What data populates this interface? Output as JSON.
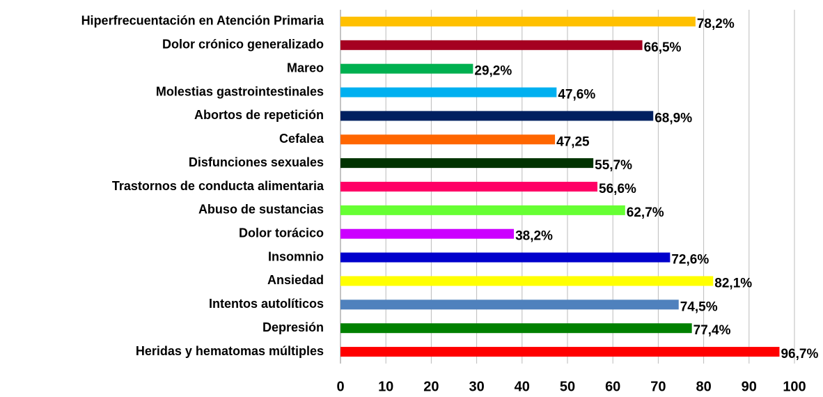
{
  "chart_data": {
    "type": "hbar",
    "categories": [
      "Hiperfrecuentación en Atención Primaria",
      "Dolor crónico generalizado",
      "Mareo",
      "Molestias gastrointestinales",
      "Abortos de repetición",
      "Cefalea",
      "Disfunciones sexuales",
      "Trastornos de conducta alimentaria",
      "Abuso de sustancias",
      "Dolor torácico",
      "Insomnio",
      "Ansiedad",
      "Intentos autolíticos",
      "Depresión",
      "Heridas y hematomas múltiples"
    ],
    "values": [
      78.2,
      66.5,
      29.2,
      47.6,
      68.9,
      47.25,
      55.7,
      56.6,
      62.7,
      38.2,
      72.6,
      82.1,
      74.5,
      77.4,
      96.7
    ],
    "value_labels": [
      "78,2%",
      "66,5%",
      "29,2%",
      "47,6%",
      "68,9%",
      "47,25",
      "55,7%",
      "56,6%",
      "62,7%",
      "38,2%",
      "72,6%",
      "82,1%",
      "74,5%",
      "77,4%",
      "96,7%"
    ],
    "colors": [
      "#FFC000",
      "#A50021",
      "#00B050",
      "#00B0F0",
      "#002060",
      "#FF6600",
      "#003300",
      "#FF0066",
      "#66FF33",
      "#CC00FF",
      "#0000CC",
      "#FFFF00",
      "#4F81BD",
      "#008000",
      "#FF0000"
    ],
    "xlim": [
      0,
      100
    ],
    "xticks": [
      0,
      10,
      20,
      30,
      40,
      50,
      60,
      70,
      80,
      90,
      100
    ],
    "grid": true
  }
}
